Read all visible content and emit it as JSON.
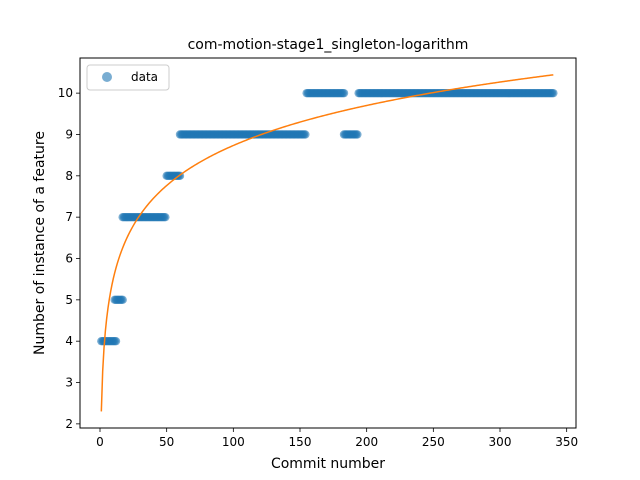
{
  "chart_data": {
    "type": "scatter",
    "title": "com-motion-stage1_singleton-logarithm",
    "xlabel": "Commit number",
    "ylabel": "Number of instance of a feature",
    "xlim": [
      -15,
      357
    ],
    "ylim": [
      1.9,
      10.85
    ],
    "xticks": [
      0,
      50,
      100,
      150,
      200,
      250,
      300,
      350
    ],
    "yticks": [
      2,
      3,
      4,
      5,
      6,
      7,
      8,
      9,
      10
    ],
    "grid": false,
    "legend": {
      "position": "top-left",
      "entries": [
        "data"
      ]
    },
    "colors": {
      "data": "#1f77b4",
      "fit": "#ff7f0e"
    },
    "series": [
      {
        "name": "data",
        "kind": "points",
        "segments": [
          {
            "x_start": 1,
            "x_end": 12,
            "y": 4
          },
          {
            "x_start": 11,
            "x_end": 17,
            "y": 5
          },
          {
            "x_start": 17,
            "x_end": 49,
            "y": 7
          },
          {
            "x_start": 50,
            "x_end": 60,
            "y": 8
          },
          {
            "x_start": 60,
            "x_end": 154,
            "y": 9
          },
          {
            "x_start": 155,
            "x_end": 183,
            "y": 10
          },
          {
            "x_start": 183,
            "x_end": 193,
            "y": 9
          },
          {
            "x_start": 194,
            "x_end": 340,
            "y": 10
          }
        ]
      },
      {
        "kind": "fit",
        "model": "logarithm",
        "a": 2.3,
        "b": 1.397,
        "x_range": [
          1,
          340
        ]
      }
    ]
  }
}
